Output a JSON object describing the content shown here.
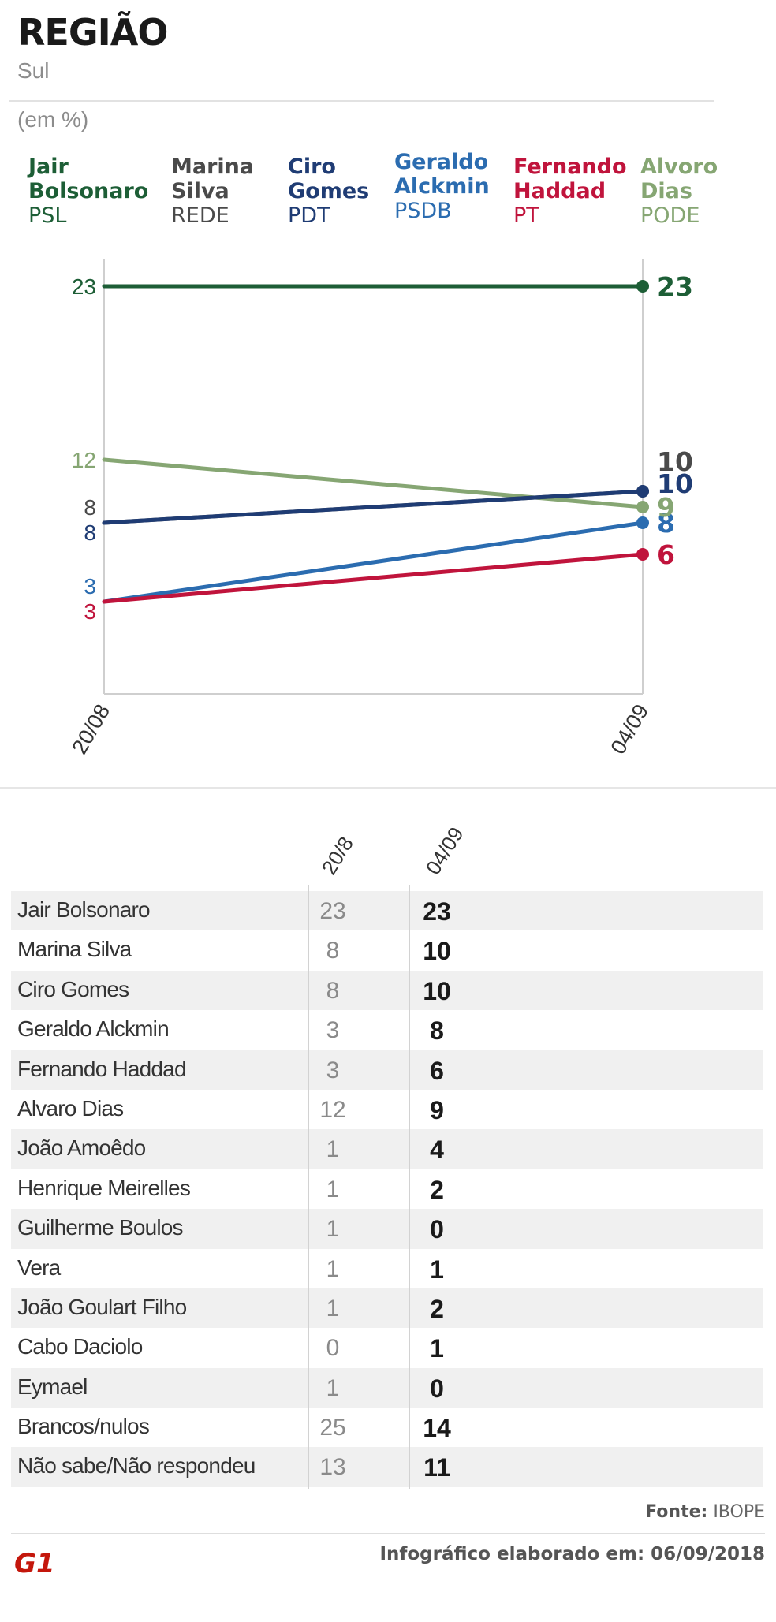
{
  "header": {
    "title": "REGIÃO",
    "subtitle": "Sul",
    "unit": "(em %)"
  },
  "colors": {
    "bolsonaro": "#1d5e36",
    "marina": "#4a4a4a",
    "ciro": "#1f3c74",
    "alckmin": "#2b6cb0",
    "haddad": "#c0143c",
    "alvaro": "#86a673",
    "axis": "#cfcfcf"
  },
  "legend": [
    {
      "name": "Jair\nBolsonaro",
      "party": "PSL",
      "color": "#1d5e36"
    },
    {
      "name": "Marina\nSilva",
      "party": "REDE",
      "color": "#4a4a4a"
    },
    {
      "name": "Ciro\nGomes",
      "party": "PDT",
      "color": "#1f3c74"
    },
    {
      "name": "Geraldo\nAlckmin",
      "party": "PSDB",
      "color": "#2b6cb0"
    },
    {
      "name": "Fernando\nHaddad",
      "party": "PT",
      "color": "#c0143c"
    },
    {
      "name": "Alvoro\nDias",
      "party": "PODE",
      "color": "#86a673"
    }
  ],
  "chart_data": {
    "type": "line",
    "x": [
      "20/08",
      "04/09"
    ],
    "series": [
      {
        "name": "Jair Bolsonaro",
        "values": [
          23,
          23
        ],
        "color": "#1d5e36"
      },
      {
        "name": "Marina Silva",
        "values": [
          8,
          10
        ],
        "color": "#4a4a4a"
      },
      {
        "name": "Ciro Gomes",
        "values": [
          8,
          10
        ],
        "color": "#1f3c74"
      },
      {
        "name": "Geraldo Alckmin",
        "values": [
          3,
          8
        ],
        "color": "#2b6cb0"
      },
      {
        "name": "Fernando Haddad",
        "values": [
          3,
          6
        ],
        "color": "#c0143c"
      },
      {
        "name": "Alvaro Dias",
        "values": [
          12,
          9
        ],
        "color": "#86a673"
      }
    ]
  },
  "table": {
    "col1": "20/8",
    "col2": "04/09",
    "rows": [
      {
        "name": "Jair Bolsonaro",
        "v1": "23",
        "v2": "23"
      },
      {
        "name": "Marina Silva",
        "v1": "8",
        "v2": "10"
      },
      {
        "name": "Ciro Gomes",
        "v1": "8",
        "v2": "10"
      },
      {
        "name": "Geraldo Alckmin",
        "v1": "3",
        "v2": "8"
      },
      {
        "name": "Fernando Haddad",
        "v1": "3",
        "v2": "6"
      },
      {
        "name": "Alvaro Dias",
        "v1": "12",
        "v2": "9"
      },
      {
        "name": "João Amoêdo",
        "v1": "1",
        "v2": "4"
      },
      {
        "name": "Henrique Meirelles",
        "v1": "1",
        "v2": "2"
      },
      {
        "name": "Guilherme Boulos",
        "v1": "1",
        "v2": "0"
      },
      {
        "name": "Vera",
        "v1": "1",
        "v2": "1"
      },
      {
        "name": "João Goulart Filho",
        "v1": "1",
        "v2": "2"
      },
      {
        "name": "Cabo Daciolo",
        "v1": "0",
        "v2": "1"
      },
      {
        "name": "Eymael",
        "v1": "1",
        "v2": "0"
      },
      {
        "name": "Brancos/nulos",
        "v1": "25",
        "v2": "14"
      },
      {
        "name": "Não sabe/Não respondeu",
        "v1": "13",
        "v2": "11"
      }
    ]
  },
  "footer": {
    "source_label": "Fonte:",
    "source_value": "IBOPE",
    "credit": "Infográfico elaborado em: 06/09/2018",
    "logo_text": "G1",
    "logo_color": "#c4170c"
  }
}
